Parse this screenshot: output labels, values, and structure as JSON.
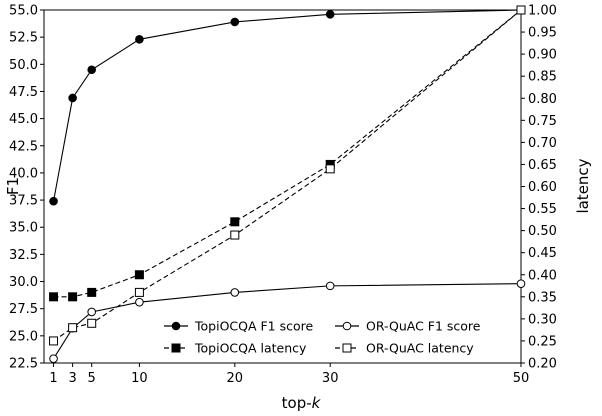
{
  "chart_data": {
    "type": "line",
    "xlabel_main": "top-",
    "xlabel_italic": "k",
    "ylabel_left": "F1",
    "ylabel_right": "latency",
    "x": [
      1,
      3,
      5,
      10,
      20,
      30,
      50
    ],
    "xlim": [
      0,
      50
    ],
    "xticks": [
      "1",
      "3",
      "5",
      "10",
      "20",
      "30",
      "50"
    ],
    "ylim_left": [
      22.5,
      55.0
    ],
    "yticks_left": [
      "22.5",
      "25.0",
      "27.5",
      "30.0",
      "32.5",
      "35.0",
      "37.5",
      "40.0",
      "42.5",
      "45.0",
      "47.5",
      "50.0",
      "52.5",
      "55.0"
    ],
    "ylim_right": [
      0.2,
      1.0
    ],
    "yticks_right": [
      "0.20",
      "0.25",
      "0.30",
      "0.35",
      "0.40",
      "0.45",
      "0.50",
      "0.55",
      "0.60",
      "0.65",
      "0.70",
      "0.75",
      "0.80",
      "0.85",
      "0.90",
      "0.95",
      "1.00"
    ],
    "grid": false,
    "legend_placement": "bottom-right",
    "series": [
      {
        "name": "TopiOCQA F1 score",
        "axis": "left",
        "marker": "filled-circle",
        "line": "solid",
        "values": [
          37.4,
          46.9,
          49.5,
          52.3,
          53.9,
          54.6,
          55.0
        ]
      },
      {
        "name": "OR-QuAC F1 score",
        "axis": "left",
        "marker": "open-circle",
        "line": "solid",
        "values": [
          22.9,
          25.7,
          27.2,
          28.1,
          29.0,
          29.6,
          29.8
        ]
      },
      {
        "name": "TopiOCQA latency",
        "axis": "right",
        "marker": "filled-square",
        "line": "dashed",
        "values": [
          0.35,
          0.35,
          0.36,
          0.4,
          0.52,
          0.65,
          1.0
        ]
      },
      {
        "name": "OR-QuAC latency",
        "axis": "right",
        "marker": "open-square",
        "line": "dashed",
        "values": [
          0.25,
          0.28,
          0.29,
          0.36,
          0.49,
          0.64,
          1.0
        ]
      }
    ]
  }
}
